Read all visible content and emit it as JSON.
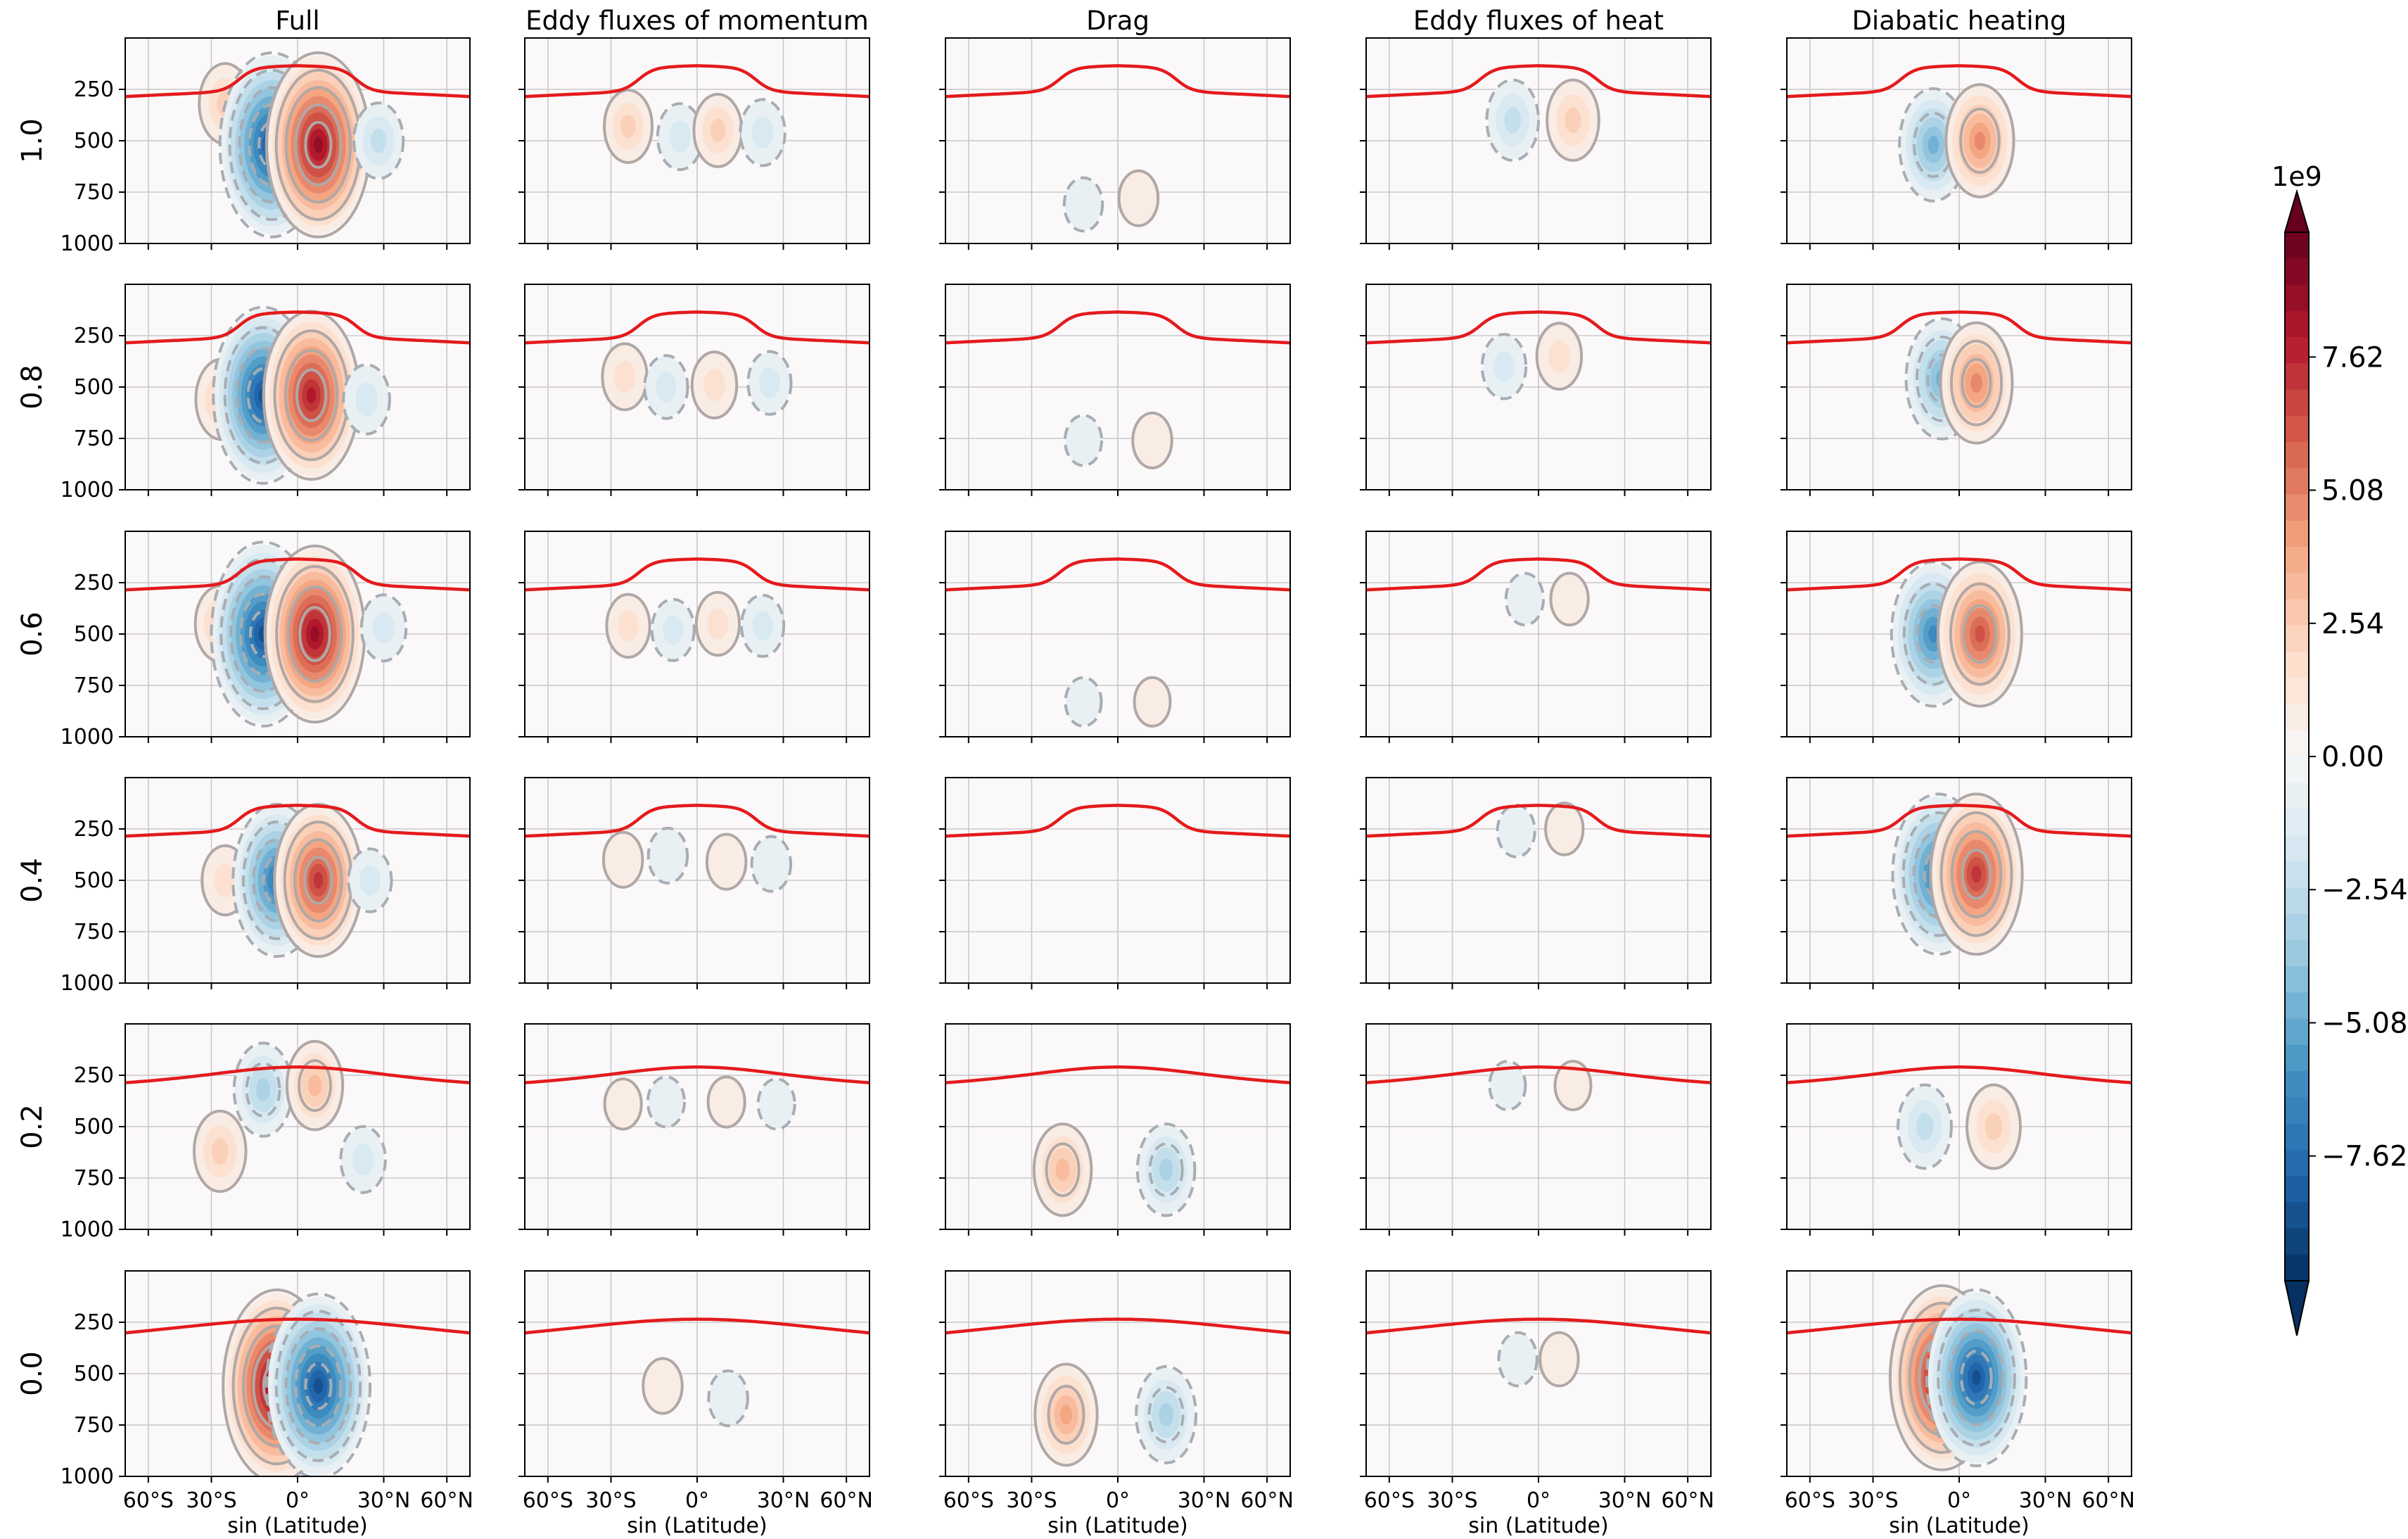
{
  "chart_data": {
    "type": "contour",
    "title": "",
    "columns": [
      "Full",
      "Eddy fluxes of momentum",
      "Drag",
      "Eddy fluxes of heat",
      "Diabatic heating"
    ],
    "rows": [
      "1.0",
      "0.8",
      "0.6",
      "0.4",
      "0.2",
      "0.0"
    ],
    "xlabel": "sin (Latitude)",
    "ylabel": "",
    "x_ticks": [
      {
        "value": -0.866,
        "label": "60°S"
      },
      {
        "value": -0.5,
        "label": "30°S"
      },
      {
        "value": 0.0,
        "label": "0°"
      },
      {
        "value": 0.5,
        "label": "30°N"
      },
      {
        "value": 0.866,
        "label": "60°N"
      }
    ],
    "xlim": [
      -1.0,
      1.0
    ],
    "y_ticks": [
      250,
      500,
      750,
      1000
    ],
    "ylim": [
      1000,
      0
    ],
    "colorbar": {
      "label": "1e9",
      "ticks": [
        "7.62",
        "5.08",
        "2.54",
        "0.00",
        "−2.54",
        "−5.08",
        "−7.62"
      ],
      "tick_values": [
        7.62,
        5.08,
        2.54,
        0.0,
        -2.54,
        -5.08,
        -7.62
      ],
      "range": [
        -10.0,
        10.0
      ],
      "colormap": "RdBu_r",
      "extend": "both"
    },
    "overlay_line": {
      "name": "tropopause",
      "color": "#e41a1c"
    },
    "contour_colors": {
      "positive": "#b0a8a6",
      "negative": "#a8adb3"
    },
    "panels": [
      [
        {
          "cells": [
            {
              "lat": -0.42,
              "p": 320,
              "amp": 2.5
            },
            {
              "lat": -0.15,
              "p": 520,
              "amp": -9
            },
            {
              "lat": 0.12,
              "p": 520,
              "amp": 9
            },
            {
              "lat": 0.47,
              "p": 500,
              "amp": -2.2
            }
          ]
        },
        {
          "cells": [
            {
              "lat": -0.4,
              "p": 430,
              "amp": 2
            },
            {
              "lat": -0.1,
              "p": 480,
              "amp": -1.6
            },
            {
              "lat": 0.12,
              "p": 450,
              "amp": 2
            },
            {
              "lat": 0.38,
              "p": 460,
              "amp": -1.6
            }
          ]
        },
        {
          "cells": [
            {
              "lat": -0.2,
              "p": 810,
              "amp": -0.8
            },
            {
              "lat": 0.12,
              "p": 780,
              "amp": 0.9
            }
          ]
        },
        {
          "cells": [
            {
              "lat": -0.15,
              "p": 400,
              "amp": -2.5
            },
            {
              "lat": 0.2,
              "p": 400,
              "amp": 2.5
            }
          ]
        },
        {
          "cells": [
            {
              "lat": -0.15,
              "p": 520,
              "amp": -4.5
            },
            {
              "lat": 0.12,
              "p": 500,
              "amp": 4.5
            }
          ]
        }
      ],
      [
        {
          "cells": [
            {
              "lat": -0.44,
              "p": 560,
              "amp": 2.5
            },
            {
              "lat": -0.2,
              "p": 540,
              "amp": -8.5
            },
            {
              "lat": 0.08,
              "p": 540,
              "amp": 8
            },
            {
              "lat": 0.4,
              "p": 560,
              "amp": -1.8
            }
          ]
        },
        {
          "cells": [
            {
              "lat": -0.42,
              "p": 450,
              "amp": 1.6
            },
            {
              "lat": -0.18,
              "p": 500,
              "amp": -1.4
            },
            {
              "lat": 0.1,
              "p": 490,
              "amp": 1.6
            },
            {
              "lat": 0.42,
              "p": 480,
              "amp": -1.4
            }
          ]
        },
        {
          "cells": [
            {
              "lat": -0.2,
              "p": 760,
              "amp": -0.6
            },
            {
              "lat": 0.2,
              "p": 760,
              "amp": 0.9
            }
          ]
        },
        {
          "cells": [
            {
              "lat": -0.2,
              "p": 400,
              "amp": -1.5
            },
            {
              "lat": 0.12,
              "p": 350,
              "amp": 1.6
            }
          ]
        },
        {
          "cells": [
            {
              "lat": -0.1,
              "p": 460,
              "amp": -5
            },
            {
              "lat": 0.1,
              "p": 480,
              "amp": 5
            }
          ]
        }
      ],
      [
        {
          "cells": [
            {
              "lat": -0.45,
              "p": 450,
              "amp": 2.2
            },
            {
              "lat": -0.2,
              "p": 500,
              "amp": -9
            },
            {
              "lat": 0.1,
              "p": 500,
              "amp": 8.5
            },
            {
              "lat": 0.5,
              "p": 470,
              "amp": -1.6
            }
          ]
        },
        {
          "cells": [
            {
              "lat": -0.4,
              "p": 460,
              "amp": 1.4
            },
            {
              "lat": -0.14,
              "p": 480,
              "amp": -1.3
            },
            {
              "lat": 0.12,
              "p": 450,
              "amp": 1.4
            },
            {
              "lat": 0.38,
              "p": 460,
              "amp": -1.3
            }
          ]
        },
        {
          "cells": [
            {
              "lat": -0.2,
              "p": 830,
              "amp": -0.5
            },
            {
              "lat": 0.2,
              "p": 830,
              "amp": 0.5
            }
          ]
        },
        {
          "cells": [
            {
              "lat": -0.08,
              "p": 330,
              "amp": -0.7
            },
            {
              "lat": 0.18,
              "p": 330,
              "amp": 0.7
            }
          ]
        },
        {
          "cells": [
            {
              "lat": -0.15,
              "p": 500,
              "amp": -6.5
            },
            {
              "lat": 0.12,
              "p": 500,
              "amp": 6.5
            }
          ]
        }
      ],
      [
        {
          "cells": [
            {
              "lat": -0.42,
              "p": 500,
              "amp": 1.8
            },
            {
              "lat": -0.12,
              "p": 500,
              "amp": -7
            },
            {
              "lat": 0.12,
              "p": 500,
              "amp": 7
            },
            {
              "lat": 0.42,
              "p": 500,
              "amp": -1.4
            }
          ]
        },
        {
          "cells": [
            {
              "lat": -0.43,
              "p": 400,
              "amp": 0.9
            },
            {
              "lat": -0.17,
              "p": 380,
              "amp": -0.9
            },
            {
              "lat": 0.17,
              "p": 410,
              "amp": 0.9
            },
            {
              "lat": 0.43,
              "p": 420,
              "amp": -0.9
            }
          ]
        },
        {
          "cells": []
        },
        {
          "cells": [
            {
              "lat": -0.13,
              "p": 260,
              "amp": -0.7
            },
            {
              "lat": 0.15,
              "p": 250,
              "amp": 0.7
            }
          ]
        },
        {
          "cells": [
            {
              "lat": -0.12,
              "p": 470,
              "amp": -7.5
            },
            {
              "lat": 0.1,
              "p": 470,
              "amp": 7.5
            }
          ]
        }
      ],
      [
        {
          "cells": [
            {
              "lat": -0.45,
              "p": 620,
              "amp": 2.5
            },
            {
              "lat": -0.2,
              "p": 320,
              "amp": -3.3
            },
            {
              "lat": 0.1,
              "p": 300,
              "amp": 3
            },
            {
              "lat": 0.38,
              "p": 660,
              "amp": -1.6
            }
          ]
        },
        {
          "cells": [
            {
              "lat": -0.43,
              "p": 390,
              "amp": 0.6
            },
            {
              "lat": -0.18,
              "p": 380,
              "amp": -0.6
            },
            {
              "lat": 0.17,
              "p": 380,
              "amp": 0.6
            },
            {
              "lat": 0.46,
              "p": 390,
              "amp": -0.6
            }
          ]
        },
        {
          "cells": [
            {
              "lat": -0.32,
              "p": 710,
              "amp": 3.2
            },
            {
              "lat": 0.28,
              "p": 710,
              "amp": -3.2
            }
          ]
        },
        {
          "cells": [
            {
              "lat": -0.18,
              "p": 300,
              "amp": -0.5
            },
            {
              "lat": 0.2,
              "p": 300,
              "amp": 0.5
            }
          ]
        },
        {
          "cells": [
            {
              "lat": -0.2,
              "p": 500,
              "amp": -2.7
            },
            {
              "lat": 0.2,
              "p": 500,
              "amp": 2.7
            }
          ]
        }
      ],
      [
        {
          "cells": [
            {
              "lat": -0.12,
              "p": 560,
              "amp": 9.5
            },
            {
              "lat": 0.12,
              "p": 560,
              "amp": -9
            }
          ]
        },
        {
          "cells": [
            {
              "lat": -0.2,
              "p": 560,
              "amp": 0.9
            },
            {
              "lat": 0.18,
              "p": 620,
              "amp": -0.9
            }
          ]
        },
        {
          "cells": [
            {
              "lat": -0.3,
              "p": 700,
              "amp": 3.8
            },
            {
              "lat": 0.28,
              "p": 700,
              "amp": -3.5
            }
          ]
        },
        {
          "cells": [
            {
              "lat": -0.12,
              "p": 430,
              "amp": -0.8
            },
            {
              "lat": 0.12,
              "p": 430,
              "amp": 0.8
            }
          ]
        },
        {
          "cells": [
            {
              "lat": -0.1,
              "p": 520,
              "amp": 9
            },
            {
              "lat": 0.1,
              "p": 520,
              "amp": -8.5
            }
          ]
        }
      ]
    ]
  }
}
